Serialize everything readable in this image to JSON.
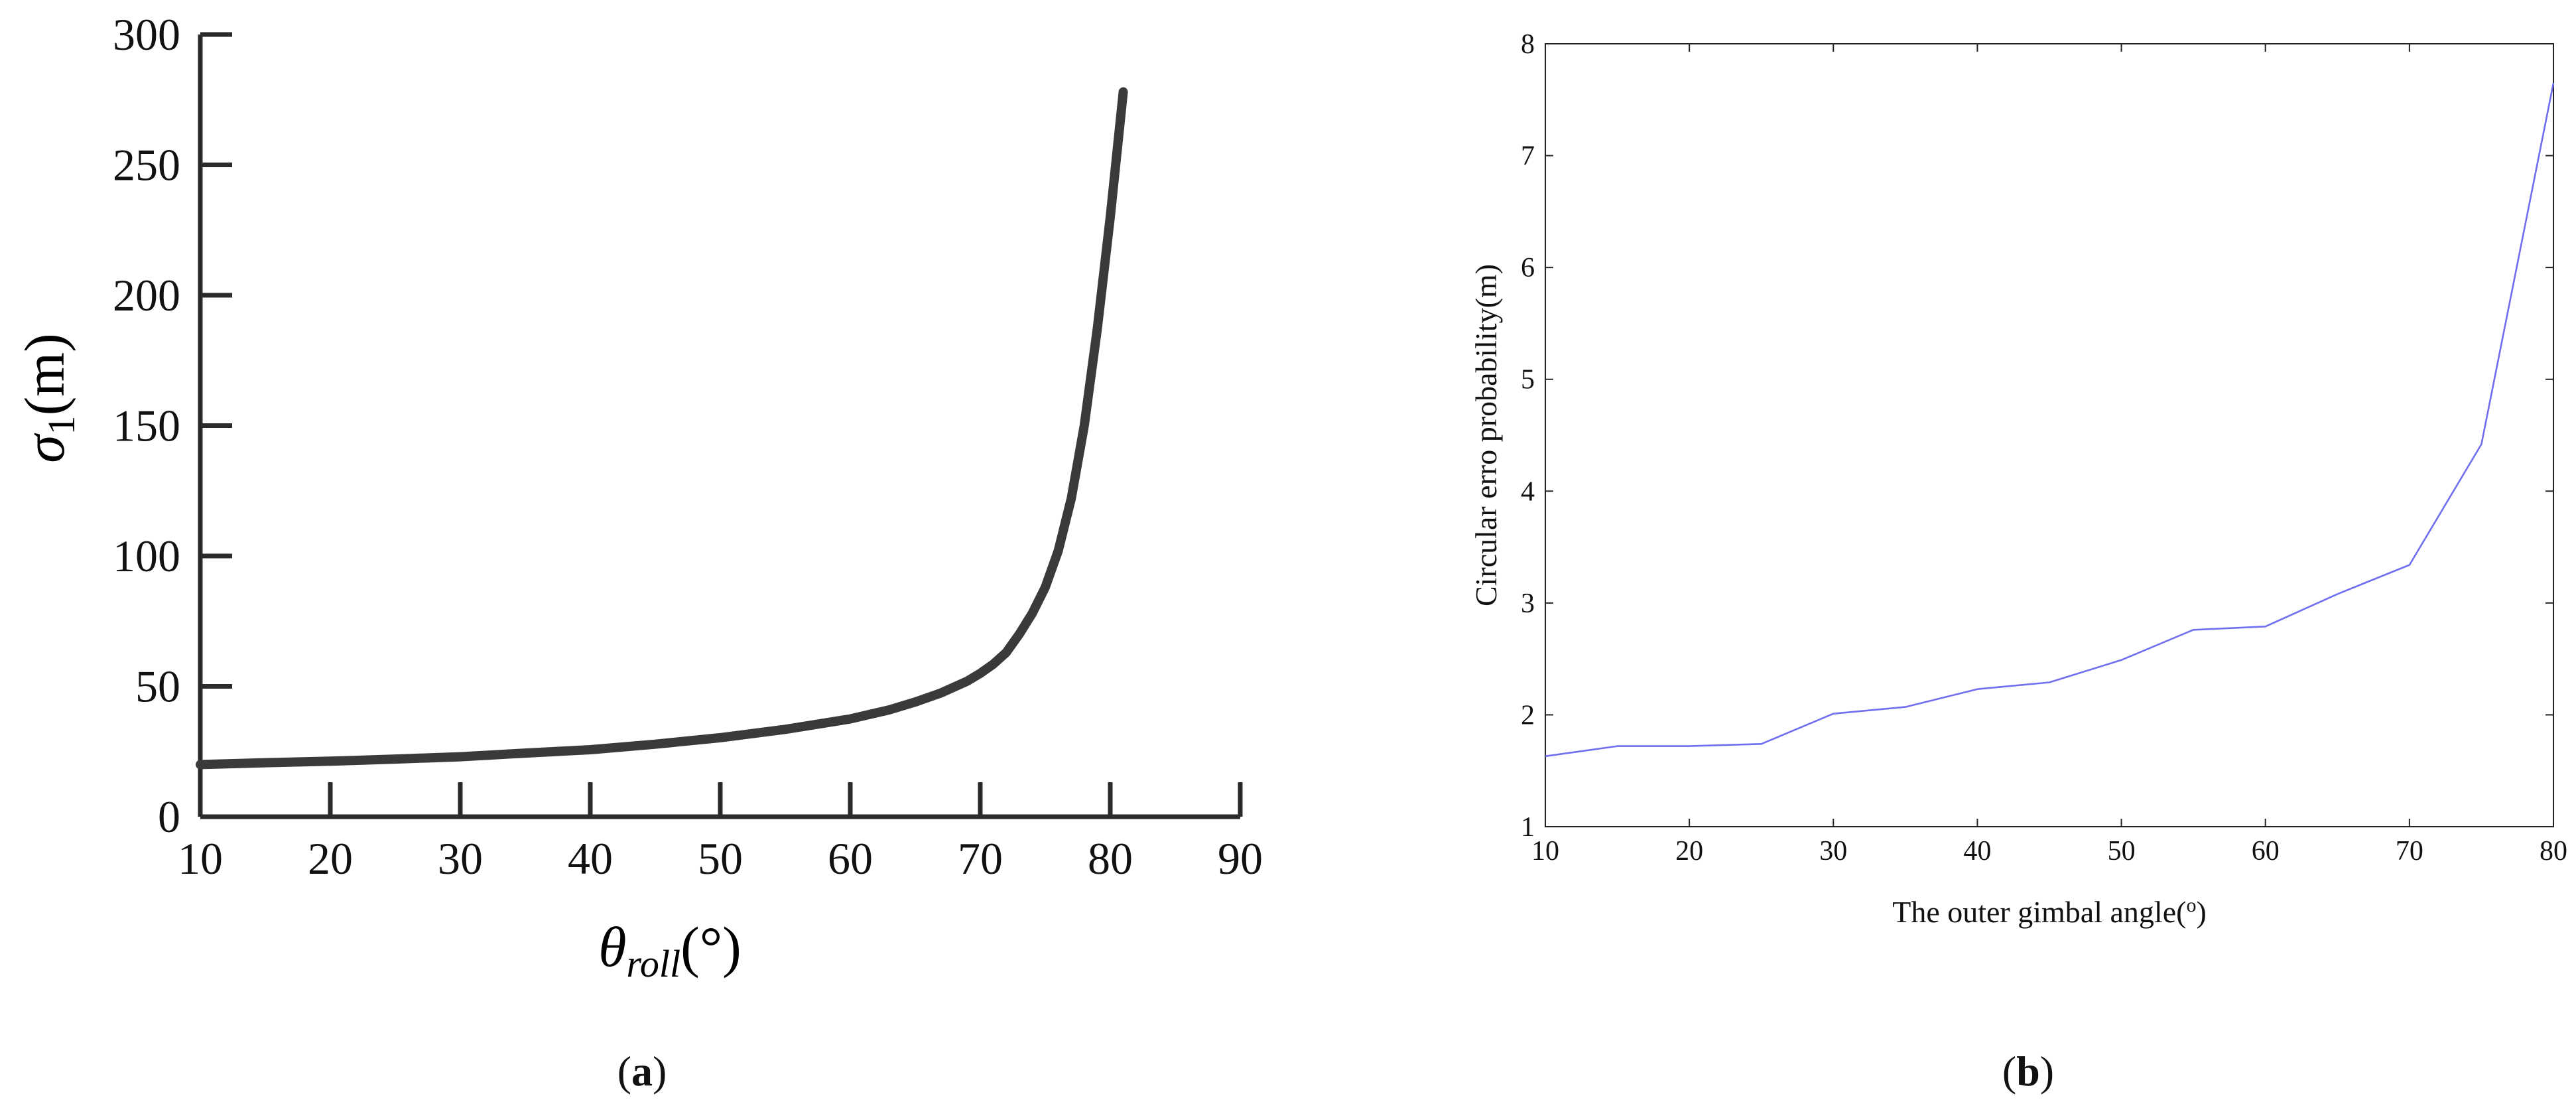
{
  "chart_data": [
    {
      "panel": "a",
      "type": "line",
      "panel_label": {
        "open": "(",
        "letter": "a",
        "close": ")"
      },
      "xlabel": {
        "symbol": "θ",
        "subscript": "roll",
        "unit": "(°)"
      },
      "ylabel": {
        "symbol": "σ",
        "subscript": "1",
        "unit": "(m)"
      },
      "xlim": [
        10,
        90
      ],
      "ylim": [
        0,
        300
      ],
      "xticks": [
        10,
        20,
        30,
        40,
        50,
        60,
        70,
        80,
        90
      ],
      "yticks": [
        0,
        50,
        100,
        150,
        200,
        250,
        300
      ],
      "grid": false,
      "line_color": "#3a3a3a",
      "series": [
        {
          "x": [
            10,
            15,
            20,
            25,
            30,
            35,
            40,
            45,
            50,
            55,
            60,
            63,
            65,
            67,
            69,
            70,
            71,
            72,
            73,
            74,
            75,
            76,
            77,
            78,
            79,
            80,
            81
          ],
          "y": [
            20,
            20.7,
            21.3,
            22.1,
            23,
            24.4,
            25.7,
            27.8,
            30.3,
            33.5,
            37.5,
            41,
            44,
            47.5,
            52,
            55,
            58.5,
            63,
            70,
            78,
            88,
            102,
            122,
            150,
            187,
            230,
            278
          ]
        }
      ]
    },
    {
      "panel": "b",
      "type": "line",
      "panel_label": {
        "open": "(",
        "letter": "b",
        "close": ")"
      },
      "xlabel": {
        "text": "The outer gimbal angle(",
        "sup": "o",
        "close": ")"
      },
      "ylabel": "Circular erro probability(m)",
      "xlim": [
        10,
        80
      ],
      "ylim": [
        1,
        8
      ],
      "xticks": [
        10,
        20,
        30,
        40,
        50,
        60,
        70,
        80
      ],
      "yticks": [
        1,
        2,
        3,
        4,
        5,
        6,
        7,
        8
      ],
      "grid": false,
      "line_color": "#6f6ff0",
      "series": [
        {
          "x": [
            10,
            15,
            20,
            25,
            30,
            35,
            40,
            45,
            50,
            55,
            60,
            65,
            70,
            75,
            80
          ],
          "y": [
            1.63,
            1.72,
            1.72,
            1.74,
            2.01,
            2.07,
            2.23,
            2.29,
            2.49,
            2.76,
            2.79,
            3.08,
            3.34,
            4.42,
            7.65
          ]
        }
      ]
    }
  ]
}
